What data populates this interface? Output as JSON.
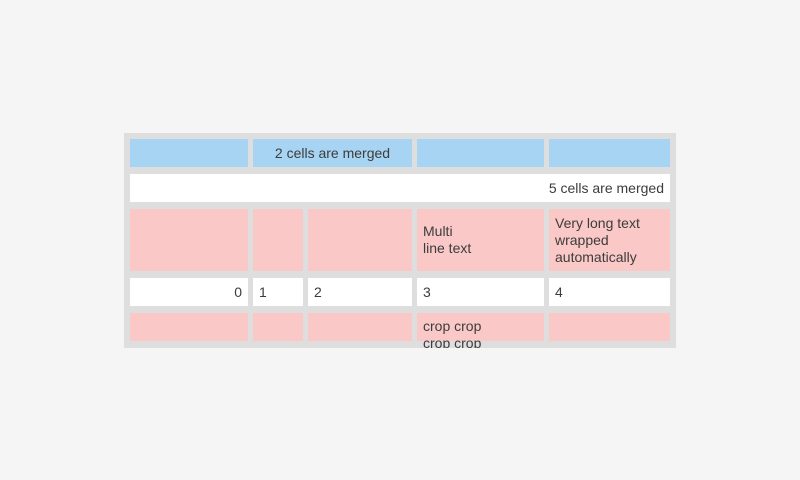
{
  "page": {
    "background": "#f5f5f5"
  },
  "colors": {
    "page_background": "#f5f5f5",
    "table_background": "#dedede",
    "cell_blue": "#a8d4f3",
    "cell_pink": "#fac9c7",
    "cell_white": "#ffffff",
    "text": "#3c3c3c"
  },
  "table": {
    "row1": {
      "merged_cell_label": "2 cells are merged"
    },
    "row2": {
      "merged_cell_label": "5 cells are merged"
    },
    "row3": {
      "col4": "Multi\nline text",
      "col5": "Very long text wrapped automatically"
    },
    "row4": {
      "col1": "0",
      "col2": "1",
      "col3": "2",
      "col4": "3",
      "col5": "4"
    },
    "row5": {
      "col4": "crop crop\ncrop crop"
    }
  }
}
